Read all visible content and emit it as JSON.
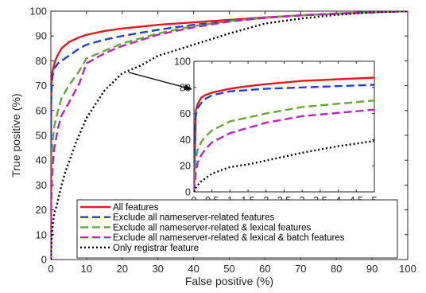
{
  "chart_data": {
    "type": "line",
    "xlabel": "False positive (%)",
    "ylabel": "True positive (%)",
    "xlim": [
      0,
      100
    ],
    "ylim": [
      0,
      100
    ],
    "xticks": [
      0,
      10,
      20,
      30,
      40,
      50,
      60,
      70,
      80,
      90,
      100
    ],
    "yticks": [
      0,
      10,
      20,
      30,
      40,
      50,
      60,
      70,
      80,
      90,
      100
    ],
    "grid": false,
    "legend_position": "bottom",
    "series": [
      {
        "name": "All features",
        "color": "#e41a1c",
        "dash": "solid",
        "x": [
          0,
          0.05,
          0.1,
          0.2,
          0.3,
          0.5,
          1,
          1.5,
          2,
          3,
          5,
          8,
          10,
          15,
          20,
          30,
          40,
          50,
          60,
          70,
          80,
          90,
          100
        ],
        "y": [
          0,
          62,
          67,
          72,
          74,
          76,
          79,
          81,
          82.5,
          85,
          87.5,
          89.5,
          90.5,
          92,
          93,
          94.5,
          95.5,
          96.5,
          97.5,
          98.3,
          99,
          99.6,
          100
        ]
      },
      {
        "name": "Exclude all nameserver-related features",
        "color": "#1f3fd6",
        "dash": "dash",
        "x": [
          0,
          0.05,
          0.1,
          0.2,
          0.3,
          0.5,
          1,
          2,
          3,
          5,
          8,
          10,
          15,
          20,
          30,
          40,
          50,
          60,
          70,
          80,
          90,
          100
        ],
        "y": [
          0,
          58,
          64,
          68,
          71,
          74,
          77,
          79,
          80,
          82,
          85,
          86.5,
          88.5,
          90,
          92.5,
          94.5,
          96,
          97.3,
          98.3,
          99,
          99.6,
          100
        ]
      },
      {
        "name": "Exclude all nameserver-related & lexical features",
        "color": "#66aa33",
        "dash": "dash",
        "x": [
          0,
          0.05,
          0.1,
          0.2,
          0.3,
          0.5,
          1,
          2,
          3,
          5,
          8,
          10,
          15,
          20,
          30,
          40,
          50,
          60,
          70,
          80,
          90,
          100
        ],
        "y": [
          0,
          25,
          32,
          38,
          42,
          47,
          54,
          60,
          65,
          70,
          76,
          81,
          84,
          87,
          91,
          94,
          96,
          97.3,
          98.3,
          99,
          99.6,
          100
        ]
      },
      {
        "name": "Exclude all nameserver-related & lexical & batch features",
        "color": "#c020c0",
        "dash": "dash",
        "x": [
          0,
          0.05,
          0.1,
          0.2,
          0.3,
          0.5,
          1,
          2,
          3,
          5,
          8,
          10,
          15,
          20,
          30,
          40,
          50,
          60,
          70,
          80,
          90,
          100
        ],
        "y": [
          0,
          15,
          22,
          28,
          32,
          38,
          45,
          53,
          58,
          63,
          71,
          79,
          83,
          86,
          90.5,
          93.5,
          95.8,
          97.3,
          98.3,
          99,
          99.6,
          100
        ]
      },
      {
        "name": "Only registrar feature",
        "color": "#000000",
        "dash": "dot",
        "x": [
          0,
          0.05,
          0.1,
          0.2,
          0.3,
          0.5,
          1,
          1.5,
          2,
          3,
          4,
          5,
          7,
          10,
          15,
          20,
          25,
          30,
          40,
          50,
          60,
          70,
          80,
          90,
          100
        ],
        "y": [
          0,
          3,
          5,
          8,
          10,
          14,
          19,
          21,
          24,
          30,
          35,
          39,
          47,
          57,
          68,
          75,
          78,
          82,
          86.5,
          91,
          95,
          97,
          98.5,
          99.5,
          100
        ]
      }
    ],
    "inset": {
      "xlim": [
        0,
        5
      ],
      "ylim": [
        0,
        100
      ],
      "xticks": [
        0,
        0.5,
        1,
        1.5,
        2,
        2.5,
        3,
        3.5,
        4,
        4.5,
        5
      ],
      "xticklabels": [
        "0",
        "0.5",
        "1",
        "1.5",
        "2",
        "2.5",
        "3",
        "3.5",
        "4",
        "4.5",
        "5"
      ],
      "yticks": [
        0,
        20,
        40,
        60,
        80,
        100
      ],
      "zoom_from": [
        20,
        76
      ]
    }
  }
}
